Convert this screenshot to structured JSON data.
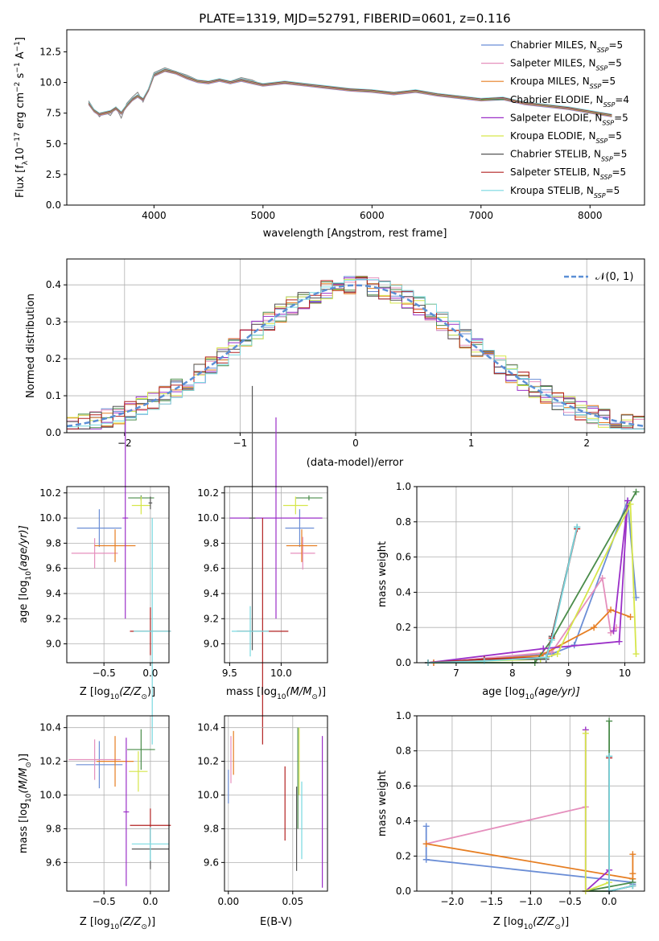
{
  "figure": {
    "title": "PLATE=1319, MJD=52791, FIBERID=0601, z=0.116"
  },
  "models": [
    {
      "name": "Chabrier MILES",
      "nssp": "5",
      "color": "#6b8ed6"
    },
    {
      "name": "Salpeter MILES",
      "nssp": "5",
      "color": "#e58fbd"
    },
    {
      "name": "Kroupa MILES",
      "nssp": "5",
      "color": "#e67e22"
    },
    {
      "name": "Chabrier ELODIE",
      "nssp": "4",
      "color": "#4a8c4a"
    },
    {
      "name": "Salpeter ELODIE",
      "nssp": "5",
      "color": "#9b30c8"
    },
    {
      "name": "Kroupa ELODIE",
      "nssp": "5",
      "color": "#d6e64a"
    },
    {
      "name": "Chabrier STELIB",
      "nssp": "5",
      "color": "#555555"
    },
    {
      "name": "Salpeter STELIB",
      "nssp": "5",
      "color": "#b22222"
    },
    {
      "name": "Kroupa STELIB",
      "nssp": "5",
      "color": "#79d9e0"
    }
  ],
  "chart_data": [
    {
      "id": "spectrum",
      "type": "line",
      "xlabel": "wavelength [Angstrom, rest frame]",
      "ylabel_main": "Flux [f",
      "ylabel_sub1": "λ",
      "ylabel_mid": "10",
      "ylabel_sup1": "−17",
      "ylabel_tail": " erg cm",
      "ylabel_sup2": "−2",
      "ylabel_tail2": " s",
      "ylabel_sup3": "−1",
      "ylabel_tail3": " A",
      "ylabel_sup4": "−1",
      "ylabel_end": "]",
      "xlim": [
        3200,
        8500
      ],
      "ylim": [
        0,
        14.3
      ],
      "xticks": [
        "4000",
        "5000",
        "6000",
        "7000",
        "8000"
      ],
      "yticks": [
        "0.0",
        "2.5",
        "5.0",
        "7.5",
        "10.0",
        "12.5"
      ],
      "data_color": "#808080",
      "data_x": [
        3400,
        3450,
        3500,
        3550,
        3600,
        3650,
        3700,
        3750,
        3800,
        3850,
        3900,
        3950,
        4000,
        4100,
        4200,
        4300,
        4400,
        4500,
        4600,
        4700,
        4800,
        4900,
        5000,
        5200,
        5400,
        5600,
        5800,
        6000,
        6200,
        6400,
        6600,
        6800,
        7000,
        7200,
        7400,
        7600,
        7800,
        8000,
        8200
      ],
      "data_y": [
        8.5,
        7.8,
        7.2,
        7.6,
        7.3,
        8.0,
        7.1,
        8.3,
        8.8,
        9.2,
        8.4,
        9.5,
        10.8,
        11.2,
        10.9,
        10.6,
        10.2,
        10.0,
        10.3,
        10.1,
        10.4,
        10.2,
        9.8,
        10.1,
        9.9,
        9.6,
        9.5,
        9.3,
        9.1,
        9.4,
        9.0,
        8.7,
        8.5,
        8.8,
        8.3,
        8.1,
        7.9,
        7.6,
        7.2
      ],
      "model_y": [
        8.3,
        7.7,
        7.4,
        7.5,
        7.6,
        7.9,
        7.5,
        8.1,
        8.6,
        8.9,
        8.6,
        9.4,
        10.6,
        11.0,
        10.8,
        10.4,
        10.1,
        10.0,
        10.2,
        10.0,
        10.2,
        10.0,
        9.8,
        10.0,
        9.8,
        9.6,
        9.4,
        9.3,
        9.1,
        9.3,
        9.0,
        8.8,
        8.6,
        8.7,
        8.3,
        8.1,
        7.9,
        7.6,
        7.3
      ]
    },
    {
      "id": "histogram",
      "type": "bar",
      "xlabel": "(data-model)/error",
      "ylabel": "Normed distribution",
      "legend_label": "𝒩(0, 1)",
      "xlim": [
        -2.5,
        2.5
      ],
      "ylim": [
        0,
        0.47
      ],
      "xticks": [
        "−2",
        "−1",
        "0",
        "1",
        "2"
      ],
      "yticks": [
        "0.0",
        "0.1",
        "0.2",
        "0.3",
        "0.4"
      ],
      "bin_width": 0.1
    },
    {
      "id": "age-vs-Z",
      "type": "scatter",
      "xlabel_a": "Z [log",
      "xlabel_sub": "10",
      "xlabel_b": "(Z/Z",
      "xlabel_sub2": "⊙",
      "xlabel_c": ")]",
      "ylabel_a": "age  [log",
      "ylabel_sub": "10",
      "ylabel_b": "(age/yr)]",
      "xlim": [
        -0.9,
        0.2
      ],
      "ylim": [
        8.85,
        10.25
      ],
      "xticks": [
        "−0.5",
        "0.0"
      ],
      "yticks": [
        "9.0",
        "9.2",
        "9.4",
        "9.6",
        "9.8",
        "10.0",
        "10.2"
      ],
      "points": [
        {
          "x": -0.55,
          "y": 9.92,
          "xerr": 0.24,
          "yerr": 0.15
        },
        {
          "x": -0.6,
          "y": 9.72,
          "xerr": 0.25,
          "yerr": 0.12
        },
        {
          "x": -0.38,
          "y": 9.78,
          "xerr": 0.22,
          "yerr": 0.13
        },
        {
          "x": -0.1,
          "y": 10.16,
          "xerr": 0.14,
          "yerr": 0.02
        },
        {
          "x": -0.27,
          "y": 10.0,
          "xerr": 0.03,
          "yerr": 0.8
        },
        {
          "x": -0.1,
          "y": 10.1,
          "xerr": 0.1,
          "yerr": 0.07
        },
        {
          "x": 0.0,
          "y": 10.12,
          "xerr": 0.02,
          "yerr": 0.05
        },
        {
          "x": 0.0,
          "y": 9.1,
          "xerr": 0.22,
          "yerr": 0.19
        },
        {
          "x": 0.02,
          "y": 9.1,
          "xerr": 0.2,
          "yerr": 0.9
        }
      ]
    },
    {
      "id": "age-vs-mass",
      "type": "scatter",
      "xlabel_a": "mass [log",
      "xlabel_sub": "10",
      "xlabel_b": "(M/M",
      "xlabel_sub2": "⊙",
      "xlabel_c": ")]",
      "xlim": [
        9.45,
        10.45
      ],
      "ylim": [
        8.85,
        10.25
      ],
      "xticks": [
        "9.5",
        "10.0"
      ],
      "yticks": [
        "9.0",
        "9.2",
        "9.4",
        "9.6",
        "9.8",
        "10.0",
        "10.2"
      ],
      "points": [
        {
          "x": 10.18,
          "y": 9.92,
          "xerr": 0.14,
          "yerr": 0.15
        },
        {
          "x": 10.21,
          "y": 9.72,
          "xerr": 0.12,
          "yerr": 0.13
        },
        {
          "x": 10.2,
          "y": 9.78,
          "xerr": 0.15,
          "yerr": 0.13
        },
        {
          "x": 10.27,
          "y": 10.16,
          "xerr": 0.13,
          "yerr": 0.02
        },
        {
          "x": 9.95,
          "y": 10.0,
          "xerr": 0.45,
          "yerr": 0.8
        },
        {
          "x": 10.14,
          "y": 10.1,
          "xerr": 0.12,
          "yerr": 0.07
        },
        {
          "x": 9.72,
          "y": 10.0,
          "xerr": 0.03,
          "yerr": 1.05
        },
        {
          "x": 9.82,
          "y": 9.1,
          "xerr": 0.25,
          "yerr": 0.9
        },
        {
          "x": 9.7,
          "y": 9.1,
          "xerr": 0.18,
          "yerr": 0.2
        }
      ]
    },
    {
      "id": "weight-vs-age",
      "type": "line",
      "xlabel_a": "age  [log",
      "xlabel_sub": "10",
      "xlabel_b": "(age/yr)]",
      "ylabel": "mass weight",
      "xlim": [
        6.3,
        10.35
      ],
      "ylim": [
        0,
        1.0
      ],
      "xticks": [
        "7",
        "8",
        "9",
        "10"
      ],
      "yticks": [
        "0.0",
        "0.2",
        "0.4",
        "0.6",
        "0.8",
        "1.0"
      ],
      "series": [
        {
          "x": [
            6.5,
            8.7,
            9.1,
            10.05,
            10.2
          ],
          "y": [
            0.0,
            0.05,
            0.1,
            0.92,
            0.37
          ]
        },
        {
          "x": [
            6.6,
            8.7,
            9.6,
            9.75,
            9.85
          ],
          "y": [
            0.0,
            0.06,
            0.48,
            0.17,
            0.2
          ]
        },
        {
          "x": [
            6.6,
            8.5,
            9.45,
            9.75,
            10.1
          ],
          "y": [
            0.0,
            0.04,
            0.2,
            0.3,
            0.26
          ]
        },
        {
          "x": [
            6.5,
            8.4,
            8.7,
            10.2
          ],
          "y": [
            0.0,
            0.0,
            0.13,
            0.97
          ]
        },
        {
          "x": [
            6.5,
            8.55,
            9.9,
            10.05,
            9.8
          ],
          "y": [
            0.0,
            0.08,
            0.12,
            0.92,
            0.18
          ]
        },
        {
          "x": [
            6.5,
            8.5,
            8.8,
            10.1,
            10.2
          ],
          "y": [
            0.0,
            0.02,
            0.05,
            0.9,
            0.05
          ]
        },
        {
          "x": [
            6.5,
            7.5,
            8.6,
            8.7,
            9.15
          ],
          "y": [
            0.0,
            0.02,
            0.02,
            0.15,
            0.77
          ]
        },
        {
          "x": [
            6.5,
            7.5,
            8.6,
            8.7,
            9.15
          ],
          "y": [
            0.0,
            0.02,
            0.03,
            0.14,
            0.76
          ]
        },
        {
          "x": [
            6.5,
            7.5,
            8.6,
            8.7,
            9.15
          ],
          "y": [
            0.0,
            0.01,
            0.03,
            0.13,
            0.77
          ]
        }
      ]
    },
    {
      "id": "mass-vs-Z",
      "type": "scatter",
      "xlabel_a": "Z [log",
      "xlabel_sub": "10",
      "xlabel_b": "(Z/Z",
      "xlabel_sub2": "⊙",
      "xlabel_c": ")]",
      "ylabel_a": "mass [log",
      "ylabel_sub": "10",
      "ylabel_b": "(M/M",
      "ylabel_sub2": "⊙",
      "ylabel_c": ")]",
      "xlim": [
        -0.9,
        0.2
      ],
      "ylim": [
        9.43,
        10.47
      ],
      "xticks": [
        "−0.5",
        "0.0"
      ],
      "yticks": [
        "9.6",
        "9.8",
        "10.0",
        "10.2",
        "10.4"
      ],
      "points": [
        {
          "x": -0.55,
          "y": 10.18,
          "xerr": 0.25,
          "yerr": 0.14
        },
        {
          "x": -0.6,
          "y": 10.21,
          "xerr": 0.28,
          "yerr": 0.12
        },
        {
          "x": -0.38,
          "y": 10.2,
          "xerr": 0.2,
          "yerr": 0.15
        },
        {
          "x": -0.1,
          "y": 10.27,
          "xerr": 0.15,
          "yerr": 0.12
        },
        {
          "x": -0.26,
          "y": 9.9,
          "xerr": 0.03,
          "yerr": 0.44
        },
        {
          "x": -0.13,
          "y": 10.14,
          "xerr": 0.1,
          "yerr": 0.12
        },
        {
          "x": 0.0,
          "y": 9.68,
          "xerr": 0.2,
          "yerr": 0.12
        },
        {
          "x": 0.0,
          "y": 9.82,
          "xerr": 0.22,
          "yerr": 0.1
        },
        {
          "x": 0.0,
          "y": 9.71,
          "xerr": 0.2,
          "yerr": 0.1
        }
      ]
    },
    {
      "id": "mass-vs-EBV",
      "type": "scatter",
      "xlabel": "E(B-V)",
      "xlim": [
        -0.003,
        0.077
      ],
      "ylim": [
        9.43,
        10.47
      ],
      "xticks": [
        "0.00",
        "0.05"
      ],
      "yticks": [
        "9.6",
        "9.8",
        "10.0",
        "10.2",
        "10.4"
      ],
      "points": [
        {
          "x": 0.0,
          "y": 10.05,
          "yerr": 0.1
        },
        {
          "x": 0.002,
          "y": 10.21,
          "yerr": 0.14
        },
        {
          "x": 0.004,
          "y": 10.25,
          "yerr": 0.13
        },
        {
          "x": 0.054,
          "y": 10.1,
          "yerr": 0.3
        },
        {
          "x": 0.073,
          "y": 9.9,
          "yerr": 0.45
        },
        {
          "x": 0.055,
          "y": 10.2,
          "yerr": 0.2
        },
        {
          "x": 0.053,
          "y": 9.8,
          "yerr": 0.25
        },
        {
          "x": 0.044,
          "y": 9.95,
          "yerr": 0.22
        },
        {
          "x": 0.057,
          "y": 9.85,
          "yerr": 0.23
        }
      ]
    },
    {
      "id": "weight-vs-Z",
      "type": "line",
      "xlabel_a": "Z [log",
      "xlabel_sub": "10",
      "xlabel_b": "(Z/Z",
      "xlabel_sub2": "⊙",
      "xlabel_c": ")]",
      "ylabel": "mass weight",
      "xlim": [
        -2.45,
        0.45
      ],
      "ylim": [
        0,
        1.0
      ],
      "xticks": [
        "−2.0",
        "−1.5",
        "−1.0",
        "−0.5",
        "0.0"
      ],
      "yticks": [
        "0.0",
        "0.2",
        "0.4",
        "0.6",
        "0.8",
        "1.0"
      ],
      "series": [
        {
          "x": [
            -2.33,
            -2.33,
            0.3,
            0.3
          ],
          "y": [
            0.37,
            0.18,
            0.05,
            0.04
          ]
        },
        {
          "x": [
            -2.33,
            -0.3
          ],
          "y": [
            0.27,
            0.48
          ]
        },
        {
          "x": [
            -2.33,
            0.3,
            0.3,
            0.3
          ],
          "y": [
            0.27,
            0.07,
            0.21,
            0.1
          ]
        },
        {
          "x": [
            0.0,
            0.0,
            -0.3,
            0.3
          ],
          "y": [
            0.97,
            0.0,
            0.0,
            0.05
          ]
        },
        {
          "x": [
            -0.3,
            -0.3,
            0.0
          ],
          "y": [
            0.92,
            0.0,
            0.12
          ]
        },
        {
          "x": [
            -0.3,
            -0.3,
            0.0
          ],
          "y": [
            0.9,
            0.0,
            0.05
          ]
        },
        {
          "x": [
            0.0,
            0.0,
            0.3
          ],
          "y": [
            0.77,
            0.0,
            0.03
          ]
        },
        {
          "x": [
            0.0,
            0.0,
            0.3
          ],
          "y": [
            0.76,
            0.0,
            0.03
          ]
        },
        {
          "x": [
            0.0,
            0.0,
            0.3
          ],
          "y": [
            0.77,
            0.0,
            0.03
          ]
        }
      ]
    }
  ]
}
